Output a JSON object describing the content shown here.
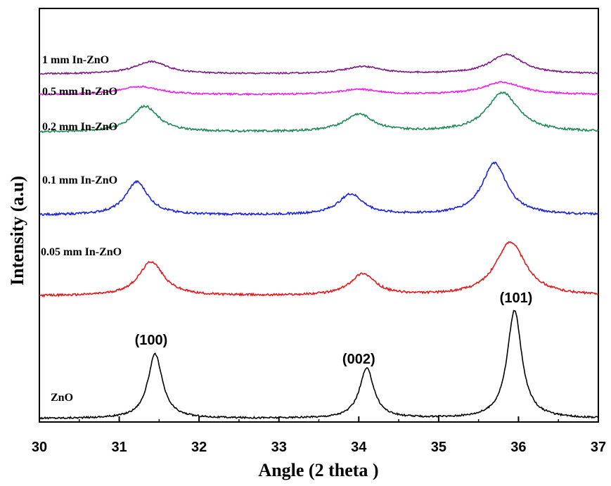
{
  "chart_data": {
    "type": "line",
    "title": "",
    "xlabel": "Angle (2 theta )",
    "ylabel": "Intensity (a.u)",
    "xlim": [
      30,
      37
    ],
    "xticks": [
      "30",
      "31",
      "32",
      "33",
      "34",
      "35",
      "36",
      "37"
    ],
    "grid": false,
    "legend": "none",
    "y_ticks_shown": false,
    "series": [
      {
        "name": "ZnO",
        "color": "#000000",
        "offset": 0,
        "baseline": 1.0,
        "noise": 0.4,
        "peaks": [
          {
            "x": 31.45,
            "height": 31,
            "width": 0.11
          },
          {
            "x": 34.1,
            "height": 24,
            "width": 0.11
          },
          {
            "x": 35.95,
            "height": 52,
            "width": 0.11
          }
        ]
      },
      {
        "name": "0.05 mm In-ZnO",
        "color": "#e8161b",
        "offset": 60,
        "baseline": 0,
        "noise": 0.5,
        "peaks": [
          {
            "x": 31.4,
            "height": 16.5,
            "width": 0.19
          },
          {
            "x": 34.05,
            "height": 10.5,
            "width": 0.19
          },
          {
            "x": 35.9,
            "height": 26,
            "width": 0.23
          }
        ]
      },
      {
        "name": "0.1 mm In-ZnO",
        "color": "#1a22e0",
        "offset": 99,
        "baseline": 0,
        "noise": 0.5,
        "peaks": [
          {
            "x": 31.22,
            "height": 16,
            "width": 0.17
          },
          {
            "x": 33.9,
            "height": 10,
            "width": 0.19
          },
          {
            "x": 35.7,
            "height": 25,
            "width": 0.19
          }
        ]
      },
      {
        "name": "0.2 mm In-ZnO",
        "color": "#1e8a56",
        "offset": 139,
        "baseline": 0,
        "noise": 0.5,
        "peaks": [
          {
            "x": 31.32,
            "height": 12.5,
            "width": 0.2
          },
          {
            "x": 34.0,
            "height": 8.5,
            "width": 0.22
          },
          {
            "x": 35.8,
            "height": 19,
            "width": 0.24
          }
        ]
      },
      {
        "name": "0.5 mm In-ZnO",
        "color": "#ee20ee",
        "offset": 157,
        "baseline": 0,
        "noise": 0.4,
        "peaks": [
          {
            "x": 31.25,
            "height": 4,
            "width": 0.3
          },
          {
            "x": 34.0,
            "height": 2.5,
            "width": 0.3
          },
          {
            "x": 35.8,
            "height": 6,
            "width": 0.3
          }
        ]
      },
      {
        "name": "1 mm In-ZnO",
        "color": "#7e1a86",
        "offset": 167,
        "baseline": 0,
        "noise": 0.35,
        "peaks": [
          {
            "x": 31.4,
            "height": 6,
            "width": 0.25
          },
          {
            "x": 34.05,
            "height": 3.5,
            "width": 0.28
          },
          {
            "x": 35.85,
            "height": 9.5,
            "width": 0.25
          }
        ]
      }
    ],
    "peak_labels": [
      {
        "text": "(100)",
        "x": 31.4
      },
      {
        "text": "(002)",
        "x": 34.0
      },
      {
        "text": "(101)",
        "x": 35.97
      }
    ]
  }
}
